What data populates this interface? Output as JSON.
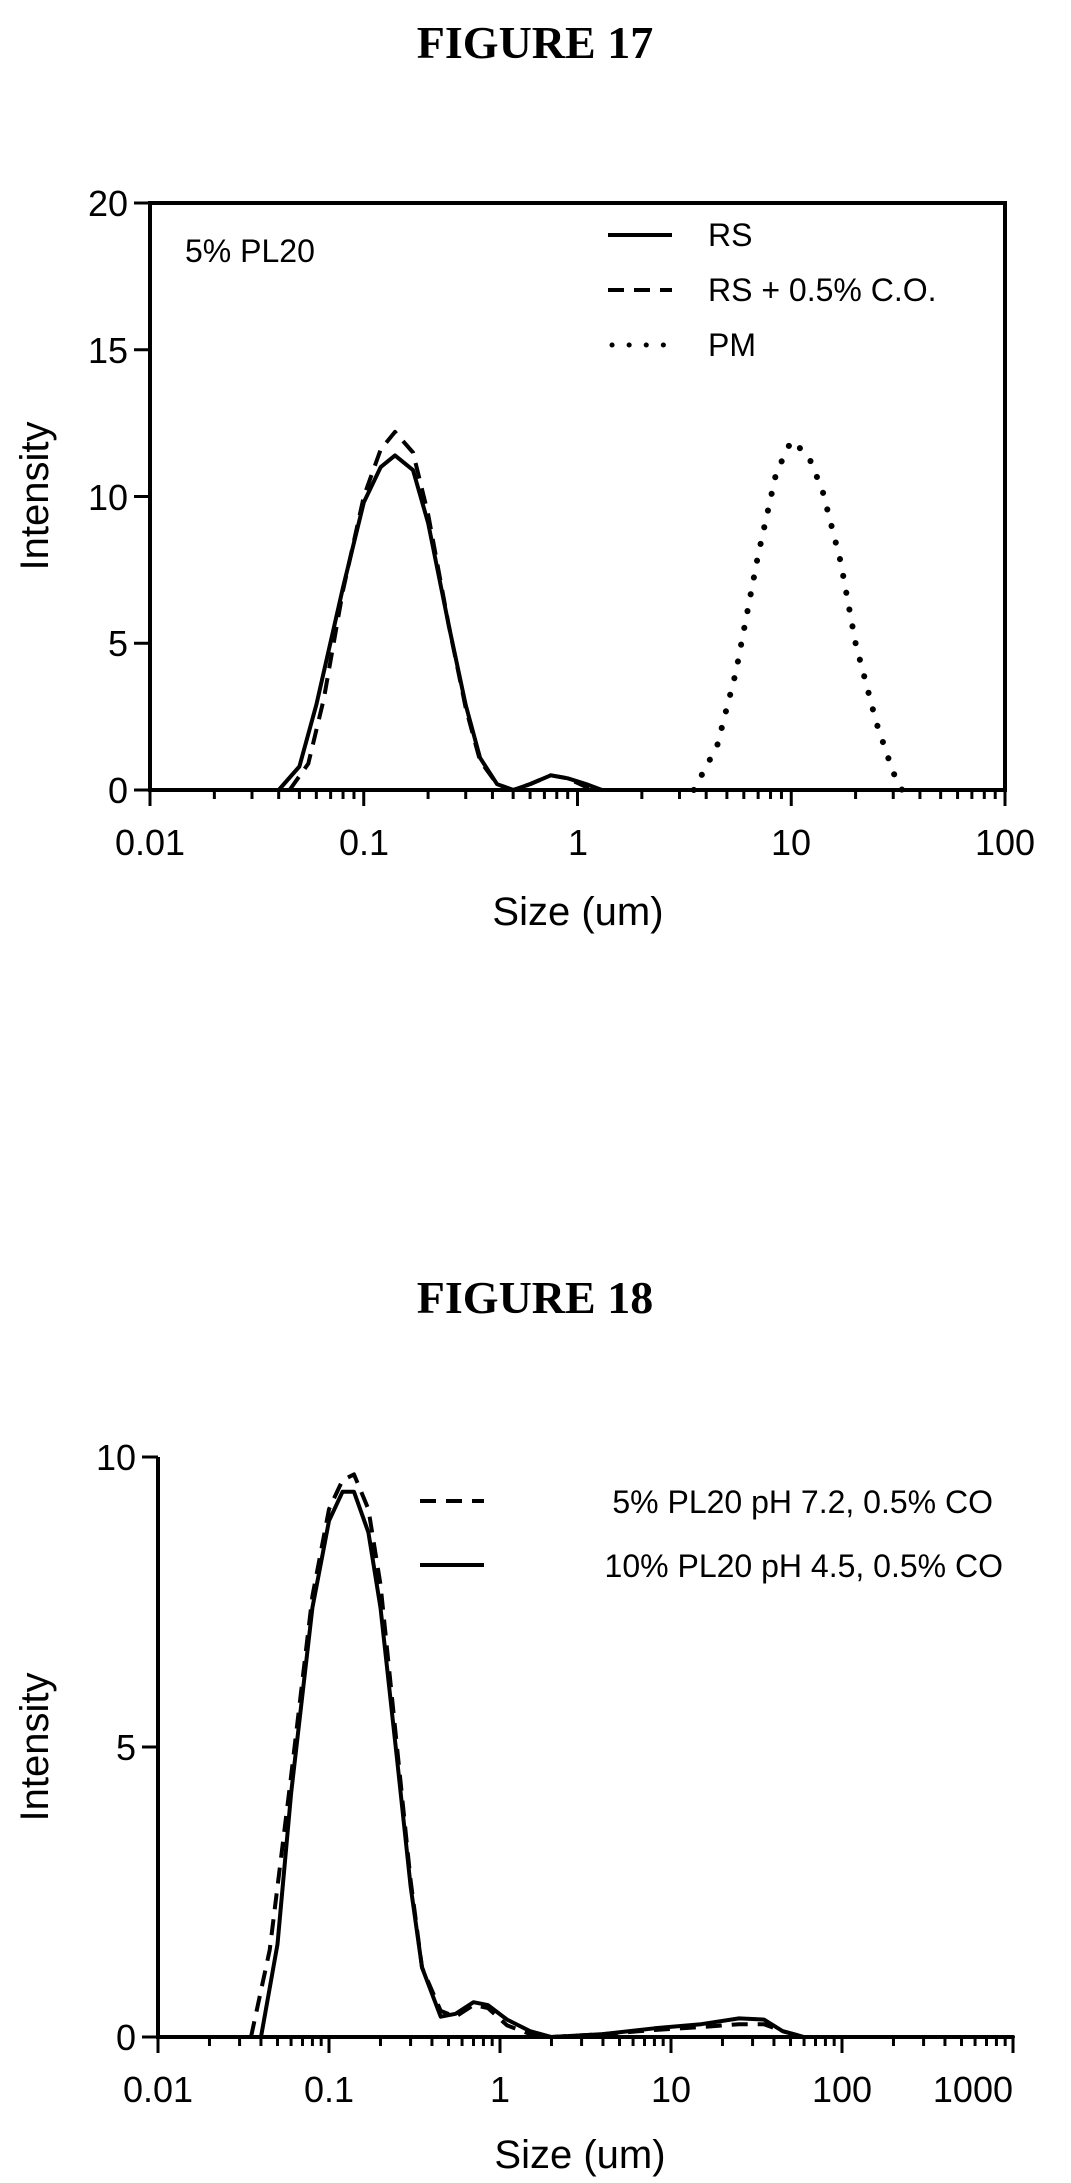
{
  "chart_data": [
    {
      "type": "line",
      "figure_title": "FIGURE 17",
      "annotation": "5% PL20",
      "xlabel": "Size (um)",
      "ylabel": "Intensity",
      "x_scale": "log",
      "xlim": [
        0.01,
        100
      ],
      "ylim": [
        0,
        20
      ],
      "x_ticks": [
        0.01,
        0.1,
        1,
        10,
        100
      ],
      "x_tick_labels": [
        "0.01",
        "0.1",
        "1",
        "10",
        "100"
      ],
      "y_ticks": [
        0,
        5,
        10,
        15,
        20
      ],
      "y_tick_labels": [
        "0",
        "5",
        "10",
        "15",
        "20"
      ],
      "legend_position": "top-right",
      "series": [
        {
          "name": "RS",
          "style": "solid",
          "points": [
            [
              0.04,
              0
            ],
            [
              0.05,
              0.8
            ],
            [
              0.06,
              2.9
            ],
            [
              0.08,
              6.9
            ],
            [
              0.1,
              9.8
            ],
            [
              0.12,
              11.0
            ],
            [
              0.14,
              11.4
            ],
            [
              0.17,
              10.9
            ],
            [
              0.2,
              9.1
            ],
            [
              0.25,
              5.6
            ],
            [
              0.3,
              2.9
            ],
            [
              0.35,
              1.1
            ],
            [
              0.42,
              0.2
            ],
            [
              0.5,
              0
            ],
            [
              0.6,
              0.2
            ],
            [
              0.75,
              0.5
            ],
            [
              0.9,
              0.4
            ],
            [
              1.1,
              0.2
            ],
            [
              1.3,
              0
            ],
            [
              100,
              0
            ]
          ]
        },
        {
          "name": "RS + 0.5% C.O.",
          "style": "dashed",
          "points": [
            [
              0.045,
              0
            ],
            [
              0.055,
              0.9
            ],
            [
              0.065,
              3.1
            ],
            [
              0.08,
              6.8
            ],
            [
              0.1,
              10.0
            ],
            [
              0.12,
              11.6
            ],
            [
              0.14,
              12.2
            ],
            [
              0.17,
              11.5
            ],
            [
              0.2,
              9.4
            ],
            [
              0.25,
              5.6
            ],
            [
              0.3,
              2.8
            ],
            [
              0.35,
              1.0
            ],
            [
              0.42,
              0.2
            ],
            [
              0.5,
              0
            ],
            [
              0.6,
              0.2
            ],
            [
              0.75,
              0.5
            ],
            [
              0.9,
              0.4
            ],
            [
              1.1,
              0.1
            ],
            [
              1.3,
              0
            ],
            [
              100,
              0
            ]
          ]
        },
        {
          "name": "PM",
          "style": "dotted",
          "points": [
            [
              3.5,
              0
            ],
            [
              4.5,
              1.5
            ],
            [
              5.5,
              4.0
            ],
            [
              7,
              8.0
            ],
            [
              8.5,
              10.8
            ],
            [
              10,
              11.9
            ],
            [
              12,
              11.4
            ],
            [
              14,
              10.2
            ],
            [
              17,
              7.8
            ],
            [
              20,
              5.0
            ],
            [
              25,
              2.3
            ],
            [
              30,
              0.6
            ],
            [
              33,
              0
            ]
          ]
        }
      ]
    },
    {
      "type": "line",
      "figure_title": "FIGURE 18",
      "xlabel": "Size (um)",
      "ylabel": "Intensity",
      "x_scale": "log",
      "xlim": [
        0.01,
        1000
      ],
      "ylim": [
        0,
        10
      ],
      "x_ticks": [
        0.01,
        0.1,
        1,
        10,
        100,
        1000
      ],
      "x_tick_labels": [
        "0.01",
        "0.1",
        "1",
        "10",
        "100",
        "1000"
      ],
      "y_ticks": [
        0,
        5,
        10
      ],
      "y_tick_labels": [
        "0",
        "5",
        "10"
      ],
      "legend_position": "top-right",
      "series": [
        {
          "name": "5% PL20 pH 7.2, 0.5% CO",
          "style": "dashed",
          "points": [
            [
              0.035,
              0
            ],
            [
              0.045,
              1.5
            ],
            [
              0.06,
              4.5
            ],
            [
              0.08,
              7.6
            ],
            [
              0.1,
              9.1
            ],
            [
              0.12,
              9.6
            ],
            [
              0.14,
              9.7
            ],
            [
              0.17,
              9.1
            ],
            [
              0.2,
              7.8
            ],
            [
              0.25,
              5.0
            ],
            [
              0.3,
              2.7
            ],
            [
              0.35,
              1.2
            ],
            [
              0.45,
              0.45
            ],
            [
              0.55,
              0.35
            ],
            [
              0.7,
              0.55
            ],
            [
              0.85,
              0.5
            ],
            [
              1.1,
              0.2
            ],
            [
              1.5,
              0.05
            ],
            [
              2,
              0
            ],
            [
              4,
              0.05
            ],
            [
              8,
              0.12
            ],
            [
              15,
              0.17
            ],
            [
              25,
              0.22
            ],
            [
              35,
              0.22
            ],
            [
              45,
              0.1
            ],
            [
              60,
              0
            ],
            [
              1000,
              0
            ]
          ]
        },
        {
          "name": "10% PL20 pH 4.5, 0.5% CO",
          "style": "solid",
          "points": [
            [
              0.04,
              0
            ],
            [
              0.05,
              1.6
            ],
            [
              0.06,
              4.2
            ],
            [
              0.08,
              7.4
            ],
            [
              0.1,
              8.9
            ],
            [
              0.12,
              9.4
            ],
            [
              0.14,
              9.4
            ],
            [
              0.17,
              8.7
            ],
            [
              0.2,
              7.4
            ],
            [
              0.25,
              4.8
            ],
            [
              0.3,
              2.6
            ],
            [
              0.35,
              1.2
            ],
            [
              0.45,
              0.35
            ],
            [
              0.55,
              0.4
            ],
            [
              0.7,
              0.6
            ],
            [
              0.85,
              0.55
            ],
            [
              1.1,
              0.3
            ],
            [
              1.5,
              0.1
            ],
            [
              2,
              0
            ],
            [
              4,
              0.05
            ],
            [
              8,
              0.15
            ],
            [
              15,
              0.22
            ],
            [
              25,
              0.32
            ],
            [
              35,
              0.3
            ],
            [
              45,
              0.1
            ],
            [
              60,
              0
            ],
            [
              1000,
              0
            ]
          ]
        }
      ]
    }
  ]
}
